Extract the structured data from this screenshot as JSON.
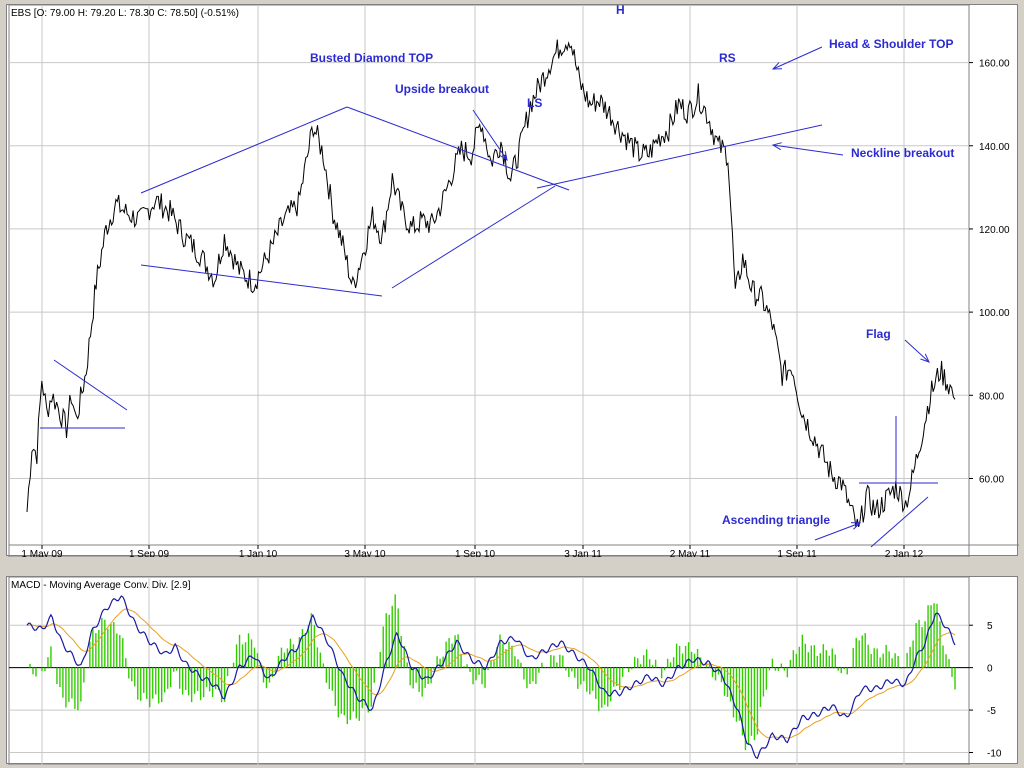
{
  "header": {
    "price_title": "EBS [O: 79.00  H: 79.20  L: 78.30  C: 78.50] (-0.51%)",
    "macd_title": "MACD - Moving Average Conv. Div. [2.9]"
  },
  "colors": {
    "price": "#000000",
    "annotation": "#2b2bd0",
    "macd_line": "#1a1aa0",
    "signal_line": "#e8a020",
    "histogram": "#33cc00",
    "grid": "#c8c8c8",
    "background": "#ffffff",
    "frame": "#d4d0c8"
  },
  "annotations": {
    "busted_diamond": "Busted Diamond TOP",
    "upside_breakout": "Upside breakout",
    "ls": "LS",
    "h": "H",
    "rs": "RS",
    "hs_top": "Head & Shoulder TOP",
    "neckline": "Neckline breakout",
    "flag": "Flag",
    "asc_triangle": "Ascending triangle"
  },
  "chart_data": [
    {
      "type": "line",
      "title": "EBS [O: 79.00  H: 79.20  L: 78.30  C: 78.50] (-0.51%)",
      "x_tick_labels": [
        "1 May 09",
        "1 Sep 09",
        "1 Jan 10",
        "3 May 10",
        "1 Sep 10",
        "3 Jan 11",
        "2 May 11",
        "1 Sep 11",
        "2 Jan 12"
      ],
      "y_ticks": [
        60,
        80,
        100,
        120,
        140,
        160
      ],
      "y_tick_labels": [
        "60.00",
        "80.00",
        "100.00",
        "120.00",
        "140.00",
        "160.00"
      ],
      "ylim": [
        44,
        170
      ],
      "grid": true,
      "series": [
        {
          "values": [
            [
              0,
              52
            ],
            [
              0.1,
              68
            ],
            [
              0.2,
              66
            ],
            [
              0.3,
              84
            ],
            [
              0.4,
              76
            ],
            [
              0.5,
              80
            ],
            [
              0.6,
              78
            ],
            [
              0.7,
              75
            ],
            [
              0.8,
              72
            ],
            [
              0.9,
              80
            ],
            [
              1.0,
              74
            ],
            [
              1.2,
              86
            ],
            [
              1.4,
              107
            ],
            [
              1.6,
              120
            ],
            [
              1.8,
              126
            ],
            [
              2.0,
              124
            ],
            [
              2.3,
              122
            ],
            [
              2.6,
              127
            ],
            [
              2.9,
              124
            ],
            [
              3.2,
              118
            ],
            [
              3.5,
              114
            ],
            [
              3.8,
              108
            ],
            [
              4.0,
              118
            ],
            [
              4.3,
              110
            ],
            [
              4.6,
              107
            ],
            [
              4.9,
              114
            ],
            [
              5.2,
              122
            ],
            [
              5.5,
              126
            ],
            [
              5.8,
              145
            ],
            [
              6.0,
              138
            ],
            [
              6.2,
              124
            ],
            [
              6.4,
              116
            ],
            [
              6.6,
              106
            ],
            [
              6.8,
              114
            ],
            [
              7.0,
              123
            ],
            [
              7.2,
              118
            ],
            [
              7.4,
              132
            ],
            [
              7.6,
              124
            ],
            [
              7.8,
              120
            ],
            [
              8.0,
              122
            ],
            [
              8.2,
              121
            ],
            [
              8.4,
              126
            ],
            [
              8.6,
              133
            ],
            [
              8.8,
              139
            ],
            [
              9.0,
              138
            ],
            [
              9.2,
              146
            ],
            [
              9.4,
              136
            ],
            [
              9.6,
              141
            ],
            [
              9.8,
              132
            ],
            [
              10.0,
              140
            ],
            [
              10.2,
              150
            ],
            [
              10.4,
              155
            ],
            [
              10.6,
              160
            ],
            [
              10.8,
              164
            ],
            [
              11.0,
              166
            ],
            [
              11.2,
              155
            ],
            [
              11.4,
              150
            ],
            [
              11.6,
              151
            ],
            [
              11.8,
              148
            ],
            [
              12.0,
              144
            ],
            [
              12.2,
              141
            ],
            [
              12.4,
              138
            ],
            [
              12.6,
              138
            ],
            [
              12.8,
              142
            ],
            [
              13.0,
              144
            ],
            [
              13.2,
              150
            ],
            [
              13.4,
              148
            ],
            [
              13.6,
              152
            ],
            [
              13.8,
              147
            ],
            [
              14.0,
              140
            ],
            [
              14.2,
              138
            ],
            [
              14.35,
              104
            ],
            [
              14.5,
              113
            ],
            [
              14.7,
              105
            ],
            [
              14.9,
              103
            ],
            [
              15.1,
              97
            ],
            [
              15.3,
              85
            ],
            [
              15.5,
              87
            ],
            [
              15.7,
              76
            ],
            [
              15.9,
              71
            ],
            [
              16.1,
              66
            ],
            [
              16.3,
              61
            ],
            [
              16.5,
              59
            ],
            [
              16.7,
              52
            ],
            [
              16.85,
              47
            ],
            [
              17.0,
              56
            ],
            [
              17.2,
              52
            ],
            [
              17.4,
              55
            ],
            [
              17.6,
              58
            ],
            [
              17.8,
              54
            ],
            [
              17.9,
              58
            ],
            [
              18.1,
              69
            ],
            [
              18.3,
              80
            ],
            [
              18.5,
              86
            ],
            [
              18.7,
              82
            ],
            [
              18.8,
              79
            ]
          ]
        }
      ]
    },
    {
      "type": "line",
      "title": "MACD - Moving Average Conv. Div. [2.9]",
      "x_tick_labels": [
        "1 May 09",
        "1 Sep 09",
        "1 Jan 10",
        "3 May 10",
        "1 Sep 10",
        "3 Jan 11",
        "2 May 11",
        "1 Sep 11",
        "2 Jan 12"
      ],
      "y_ticks": [
        -10,
        -5,
        0,
        5
      ],
      "y_tick_labels": [
        "-10",
        "-5",
        "0",
        "5"
      ],
      "ylim": [
        -11,
        9.5
      ],
      "grid": true,
      "series": [
        {
          "values": [
            [
              0,
              5
            ],
            [
              0.3,
              4.5
            ],
            [
              0.5,
              6
            ],
            [
              0.7,
              3
            ],
            [
              0.9,
              1.5
            ],
            [
              1.1,
              0
            ],
            [
              1.3,
              4
            ],
            [
              1.6,
              7
            ],
            [
              1.9,
              8.5
            ],
            [
              2.2,
              5
            ],
            [
              2.5,
              3
            ],
            [
              2.8,
              1.5
            ],
            [
              3.0,
              2.5
            ],
            [
              3.2,
              0.5
            ],
            [
              3.5,
              -1
            ],
            [
              3.8,
              -2
            ],
            [
              4.0,
              -3.5
            ],
            [
              4.3,
              0
            ],
            [
              4.6,
              1.5
            ],
            [
              4.9,
              -1.5
            ],
            [
              5.2,
              1
            ],
            [
              5.5,
              2.5
            ],
            [
              5.8,
              6
            ],
            [
              6.1,
              3
            ],
            [
              6.4,
              -1
            ],
            [
              6.7,
              -3.5
            ],
            [
              7.0,
              -5
            ],
            [
              7.3,
              1
            ],
            [
              7.5,
              4
            ],
            [
              7.8,
              0
            ],
            [
              8.1,
              -1.5
            ],
            [
              8.4,
              0.5
            ],
            [
              8.7,
              3
            ],
            [
              9.0,
              1
            ],
            [
              9.3,
              0
            ],
            [
              9.6,
              3
            ],
            [
              9.9,
              3.5
            ],
            [
              10.2,
              1
            ],
            [
              10.5,
              2
            ],
            [
              10.8,
              3
            ],
            [
              11.1,
              1.5
            ],
            [
              11.4,
              0
            ],
            [
              11.7,
              -3
            ],
            [
              12.0,
              -3
            ],
            [
              12.3,
              -2
            ],
            [
              12.6,
              -1
            ],
            [
              12.9,
              -2
            ],
            [
              13.2,
              0
            ],
            [
              13.5,
              1
            ],
            [
              13.8,
              0.5
            ],
            [
              14.1,
              -1
            ],
            [
              14.4,
              -5
            ],
            [
              14.6,
              -9
            ],
            [
              14.8,
              -10.5
            ],
            [
              15.1,
              -8
            ],
            [
              15.4,
              -8.5
            ],
            [
              15.7,
              -6
            ],
            [
              16.0,
              -5.5
            ],
            [
              16.3,
              -4.5
            ],
            [
              16.6,
              -6
            ],
            [
              16.9,
              -2.5
            ],
            [
              17.2,
              -2.5
            ],
            [
              17.5,
              -1.5
            ],
            [
              17.8,
              -2
            ],
            [
              18.0,
              1
            ],
            [
              18.2,
              3
            ],
            [
              18.4,
              6.5
            ],
            [
              18.6,
              5
            ],
            [
              18.8,
              3
            ]
          ]
        }
      ]
    }
  ]
}
